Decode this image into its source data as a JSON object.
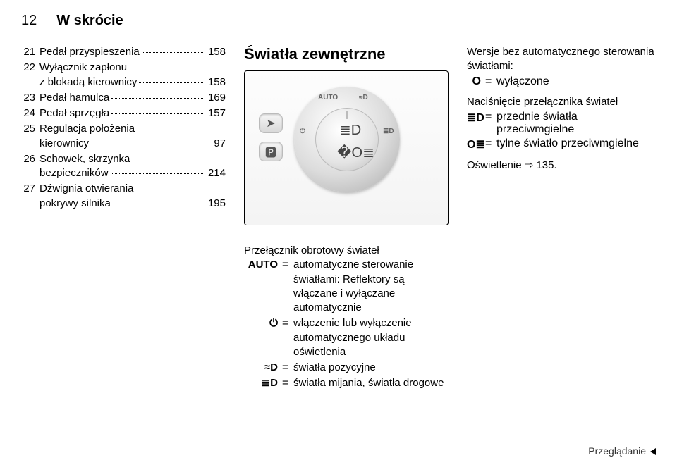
{
  "header": {
    "page_num": "12",
    "title": "W skrócie"
  },
  "list": [
    {
      "n": "21",
      "lines": [
        "Pedał przyspieszenia"
      ],
      "ref": "158"
    },
    {
      "n": "22",
      "lines": [
        "Wyłącznik zapłonu",
        "z blokadą kierownicy"
      ],
      "ref": "158"
    },
    {
      "n": "23",
      "lines": [
        "Pedał hamulca"
      ],
      "ref": "169"
    },
    {
      "n": "24",
      "lines": [
        "Pedał sprzęgła"
      ],
      "ref": "157"
    },
    {
      "n": "25",
      "lines": [
        "Regulacja położenia",
        "kierownicy"
      ],
      "ref": "97"
    },
    {
      "n": "26",
      "lines": [
        "Schowek, skrzynka",
        "bezpieczników"
      ],
      "ref": "214"
    },
    {
      "n": "27",
      "lines": [
        "Dźwignia otwierania",
        "pokrywy silnika"
      ],
      "ref": "195"
    }
  ],
  "col2": {
    "heading": "Światła zewnętrzne",
    "dial": {
      "arc_labels": [
        "⏻",
        "AUTO",
        "≈D",
        "≣D"
      ],
      "inner_top": "≣D",
      "inner_bottom": "�O≣",
      "button_top": "➤",
      "button_bottom": "🅿"
    },
    "def_title": "Przełącznik obrotowy świateł",
    "defs": [
      {
        "k": "AUTO",
        "v": "automatyczne sterowanie światłami: Reflektory są włączane i wyłączane automatycznie"
      },
      {
        "k": "⏻",
        "v": "włączenie lub wyłączenie automatycznego układu oświetlenia"
      },
      {
        "k": "≈D",
        "v": "światła pozycyjne"
      },
      {
        "k": "≣D",
        "v": "światła mijania, światła drogowe"
      }
    ]
  },
  "col3": {
    "p1": "Wersje bez automatycznego sterowania światłami:",
    "off": {
      "k": "O",
      "v": "wyłączone"
    },
    "p2": "Naciśnięcie przełącznika świateł",
    "defs": [
      {
        "k": "≣D",
        "v": "przednie światła przeciwmgielne"
      },
      {
        "k": "O≣",
        "v": "tylne światło przeciwmgielne"
      }
    ],
    "p3a": "Oświetlenie ",
    "p3icon": "⇨",
    "p3b": " 135."
  },
  "footer": "Przeglądanie",
  "colors": {
    "text": "#000000",
    "muted": "#666666",
    "border": "#000000",
    "bg": "#ffffff"
  }
}
